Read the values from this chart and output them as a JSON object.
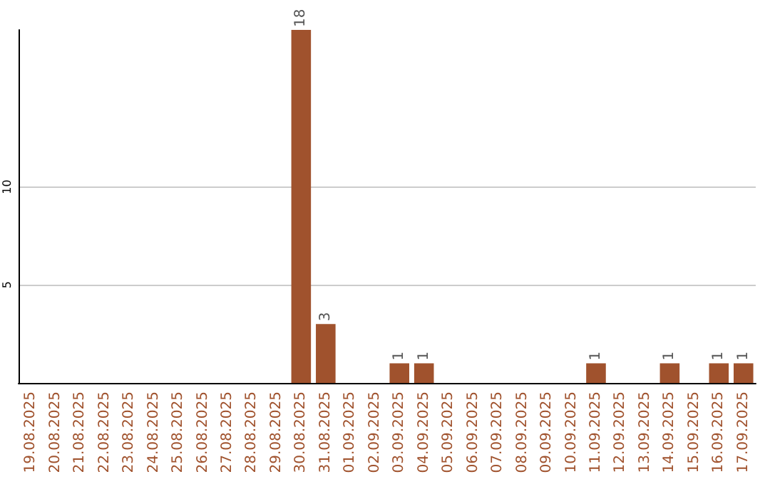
{
  "chart_data": {
    "type": "bar",
    "categories": [
      "19.08.2025",
      "20.08.2025",
      "21.08.2025",
      "22.08.2025",
      "23.08.2025",
      "24.08.2025",
      "25.08.2025",
      "26.08.2025",
      "27.08.2025",
      "28.08.2025",
      "29.08.2025",
      "30.08.2025",
      "31.08.2025",
      "01.09.2025",
      "02.09.2025",
      "03.09.2025",
      "04.09.2025",
      "05.09.2025",
      "06.09.2025",
      "07.09.2025",
      "08.09.2025",
      "09.09.2025",
      "10.09.2025",
      "11.09.2025",
      "12.09.2025",
      "13.09.2025",
      "14.09.2025",
      "15.09.2025",
      "16.09.2025",
      "17.09.2025"
    ],
    "values": [
      0,
      0,
      0,
      0,
      0,
      0,
      0,
      0,
      0,
      0,
      0,
      18,
      3,
      0,
      0,
      1,
      1,
      0,
      0,
      0,
      0,
      0,
      0,
      1,
      0,
      0,
      1,
      0,
      1,
      1
    ],
    "value_labels": [
      null,
      null,
      null,
      null,
      null,
      null,
      null,
      null,
      null,
      null,
      null,
      "18",
      "3",
      null,
      null,
      "1",
      "1",
      null,
      null,
      null,
      null,
      null,
      null,
      "1",
      null,
      null,
      "1",
      null,
      "1",
      "1"
    ],
    "color": "#a0522d",
    "ylim": [
      0,
      18
    ],
    "yticks": [
      5,
      10
    ],
    "grid": "y"
  }
}
